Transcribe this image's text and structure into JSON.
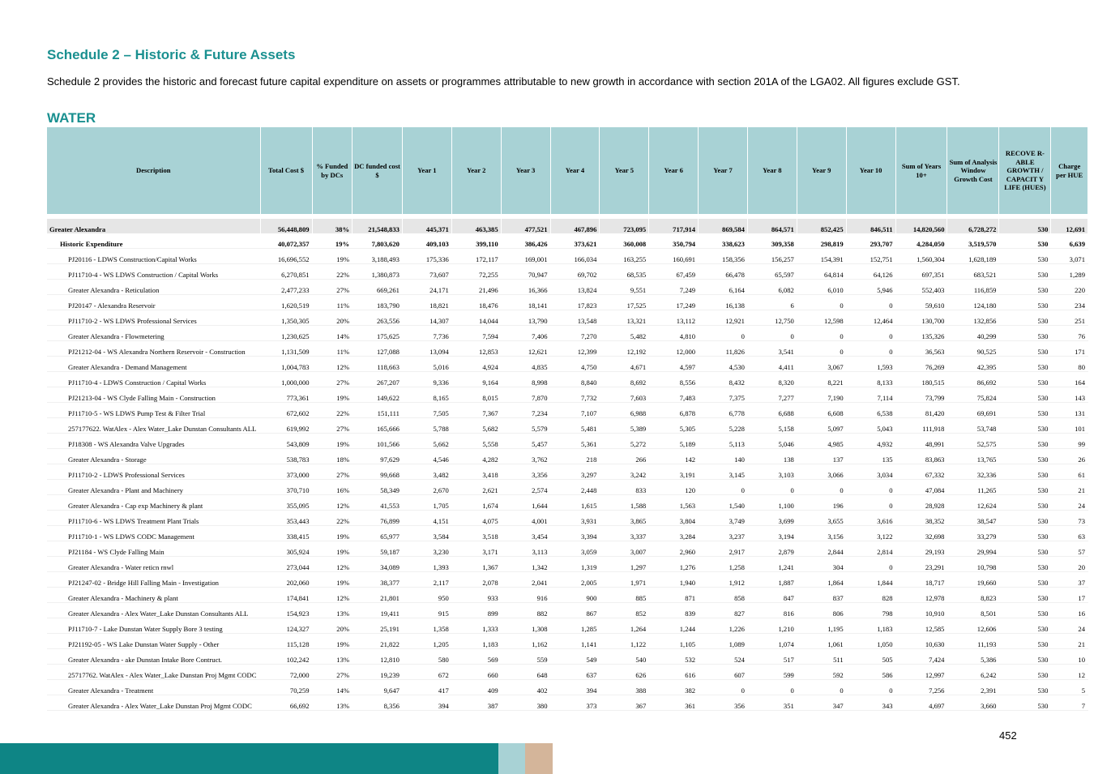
{
  "heading": "Schedule 2 – Historic & Future Assets",
  "intro": "Schedule 2 provides the historic and forecast future capital expenditure on assets or programmes attributable to new growth in accordance with section 201A of the LGA02. All figures exclude GST.",
  "section": "WATER",
  "page_number": "452",
  "columns": [
    "Description",
    "Total Cost $",
    "% Funded by DCs",
    "DC funded cost $",
    "Year 1",
    "Year 2",
    "Year 3",
    "Year 4",
    "Year 5",
    "Year 6",
    "Year 7",
    "Year 8",
    "Year 9",
    "Year 10",
    "Sum of Years 10+",
    "Sum of Analysis Window Growth Cost",
    "RECOVE R-ABLE GROWTH / CAPACIT Y LIFE (HUES)",
    "Charge per HUE"
  ],
  "rows": [
    {
      "level": 1,
      "cells": [
        "Greater Alexandra",
        "56,448,809",
        "38%",
        "21,548,833",
        "445,371",
        "463,385",
        "477,521",
        "467,896",
        "723,095",
        "717,914",
        "869,584",
        "864,571",
        "852,425",
        "846,511",
        "14,820,560",
        "6,728,272",
        "530",
        "12,691"
      ]
    },
    {
      "level": 2,
      "cells": [
        "Historic Expenditure",
        "40,072,357",
        "19%",
        "7,803,620",
        "409,103",
        "399,110",
        "386,426",
        "373,621",
        "360,008",
        "350,794",
        "338,623",
        "309,358",
        "298,819",
        "293,707",
        "4,284,050",
        "3,519,570",
        "530",
        "6,639"
      ]
    },
    {
      "level": 3,
      "cells": [
        "PJ20116 - LDWS Construction/Capital Works",
        "16,696,552",
        "19%",
        "3,188,493",
        "175,336",
        "172,117",
        "169,001",
        "166,034",
        "163,255",
        "160,691",
        "158,356",
        "156,257",
        "154,391",
        "152,751",
        "1,560,304",
        "1,628,189",
        "530",
        "3,071"
      ]
    },
    {
      "level": 3,
      "cells": [
        "PJ11710-4 - WS LDWS Construction / Capital Works",
        "6,270,851",
        "22%",
        "1,380,873",
        "73,607",
        "72,255",
        "70,947",
        "69,702",
        "68,535",
        "67,459",
        "66,478",
        "65,597",
        "64,814",
        "64,126",
        "697,351",
        "683,521",
        "530",
        "1,289"
      ]
    },
    {
      "level": 3,
      "cells": [
        "Greater Alexandra - Reticulation",
        "2,477,233",
        "27%",
        "669,261",
        "24,171",
        "21,496",
        "16,366",
        "13,824",
        "9,551",
        "7,249",
        "6,164",
        "6,082",
        "6,010",
        "5,946",
        "552,403",
        "116,859",
        "530",
        "220"
      ]
    },
    {
      "level": 3,
      "cells": [
        "PJ20147 - Alexandra Reservoir",
        "1,620,519",
        "11%",
        "183,790",
        "18,821",
        "18,476",
        "18,141",
        "17,823",
        "17,525",
        "17,249",
        "16,138",
        "6",
        "0",
        "0",
        "59,610",
        "124,180",
        "530",
        "234"
      ]
    },
    {
      "level": 3,
      "cells": [
        "PJ11710-2 - WS LDWS Professional Services",
        "1,350,305",
        "20%",
        "263,556",
        "14,307",
        "14,044",
        "13,790",
        "13,548",
        "13,321",
        "13,112",
        "12,921",
        "12,750",
        "12,598",
        "12,464",
        "130,700",
        "132,856",
        "530",
        "251"
      ]
    },
    {
      "level": 3,
      "cells": [
        "Greater Alexandra - Flowmetering",
        "1,230,625",
        "14%",
        "175,625",
        "7,736",
        "7,594",
        "7,406",
        "7,270",
        "5,482",
        "4,810",
        "0",
        "0",
        "0",
        "0",
        "135,326",
        "40,299",
        "530",
        "76"
      ]
    },
    {
      "level": 3,
      "cells": [
        "PJ21212-04 - WS Alexandra Northern Reservoir - Construction",
        "1,131,509",
        "11%",
        "127,088",
        "13,094",
        "12,853",
        "12,621",
        "12,399",
        "12,192",
        "12,000",
        "11,826",
        "3,541",
        "0",
        "0",
        "36,563",
        "90,525",
        "530",
        "171"
      ]
    },
    {
      "level": 3,
      "cells": [
        "Greater Alexandra - Demand Management",
        "1,004,783",
        "12%",
        "118,663",
        "5,016",
        "4,924",
        "4,835",
        "4,750",
        "4,671",
        "4,597",
        "4,530",
        "4,411",
        "3,067",
        "1,593",
        "76,269",
        "42,395",
        "530",
        "80"
      ]
    },
    {
      "level": 3,
      "cells": [
        "PJ11710-4 - LDWS Construction / Capital Works",
        "1,000,000",
        "27%",
        "267,207",
        "9,336",
        "9,164",
        "8,998",
        "8,840",
        "8,692",
        "8,556",
        "8,432",
        "8,320",
        "8,221",
        "8,133",
        "180,515",
        "86,692",
        "530",
        "164"
      ]
    },
    {
      "level": 3,
      "cells": [
        "PJ21213-04 - WS Clyde Falling Main - Construction",
        "773,361",
        "19%",
        "149,622",
        "8,165",
        "8,015",
        "7,870",
        "7,732",
        "7,603",
        "7,483",
        "7,375",
        "7,277",
        "7,190",
        "7,114",
        "73,799",
        "75,824",
        "530",
        "143"
      ]
    },
    {
      "level": 3,
      "cells": [
        "PJ11710-5 - WS LDWS Pump Test & Filter Trial",
        "672,602",
        "22%",
        "151,111",
        "7,505",
        "7,367",
        "7,234",
        "7,107",
        "6,988",
        "6,878",
        "6,778",
        "6,688",
        "6,608",
        "6,538",
        "81,420",
        "69,691",
        "530",
        "131"
      ]
    },
    {
      "level": 3,
      "cells": [
        "257177622. WatAlex - Alex Water_Lake Dunstan Consultants ALL",
        "619,992",
        "27%",
        "165,666",
        "5,788",
        "5,682",
        "5,579",
        "5,481",
        "5,389",
        "5,305",
        "5,228",
        "5,158",
        "5,097",
        "5,043",
        "111,918",
        "53,748",
        "530",
        "101"
      ]
    },
    {
      "level": 3,
      "cells": [
        "PJ18308 - WS Alexandra Valve Upgrades",
        "543,809",
        "19%",
        "101,566",
        "5,662",
        "5,558",
        "5,457",
        "5,361",
        "5,272",
        "5,189",
        "5,113",
        "5,046",
        "4,985",
        "4,932",
        "48,991",
        "52,575",
        "530",
        "99"
      ]
    },
    {
      "level": 3,
      "cells": [
        "Greater Alexandra - Storage",
        "538,783",
        "18%",
        "97,629",
        "4,546",
        "4,282",
        "3,762",
        "218",
        "266",
        "142",
        "140",
        "138",
        "137",
        "135",
        "83,863",
        "13,765",
        "530",
        "26"
      ]
    },
    {
      "level": 3,
      "cells": [
        "PJ11710-2 - LDWS Professional Services",
        "373,000",
        "27%",
        "99,668",
        "3,482",
        "3,418",
        "3,356",
        "3,297",
        "3,242",
        "3,191",
        "3,145",
        "3,103",
        "3,066",
        "3,034",
        "67,332",
        "32,336",
        "530",
        "61"
      ]
    },
    {
      "level": 3,
      "cells": [
        "Greater Alexandra - Plant and Machinery",
        "370,710",
        "16%",
        "58,349",
        "2,670",
        "2,621",
        "2,574",
        "2,448",
        "833",
        "120",
        "0",
        "0",
        "0",
        "0",
        "47,084",
        "11,265",
        "530",
        "21"
      ]
    },
    {
      "level": 3,
      "cells": [
        "Greater Alexandra - Cap exp Machinery & plant",
        "355,095",
        "12%",
        "41,553",
        "1,705",
        "1,674",
        "1,644",
        "1,615",
        "1,588",
        "1,563",
        "1,540",
        "1,100",
        "196",
        "0",
        "28,928",
        "12,624",
        "530",
        "24"
      ]
    },
    {
      "level": 3,
      "cells": [
        "PJ11710-6 - WS LDWS Treatment  Plant Trials",
        "353,443",
        "22%",
        "76,899",
        "4,151",
        "4,075",
        "4,001",
        "3,931",
        "3,865",
        "3,804",
        "3,749",
        "3,699",
        "3,655",
        "3,616",
        "38,352",
        "38,547",
        "530",
        "73"
      ]
    },
    {
      "level": 3,
      "cells": [
        "PJ11710-1 - WS LDWS CODC Management",
        "338,415",
        "19%",
        "65,977",
        "3,584",
        "3,518",
        "3,454",
        "3,394",
        "3,337",
        "3,284",
        "3,237",
        "3,194",
        "3,156",
        "3,122",
        "32,698",
        "33,279",
        "530",
        "63"
      ]
    },
    {
      "level": 3,
      "cells": [
        "PJ21184 - WS Clyde Falling Main",
        "305,924",
        "19%",
        "59,187",
        "3,230",
        "3,171",
        "3,113",
        "3,059",
        "3,007",
        "2,960",
        "2,917",
        "2,879",
        "2,844",
        "2,814",
        "29,193",
        "29,994",
        "530",
        "57"
      ]
    },
    {
      "level": 3,
      "cells": [
        "Greater Alexandra - Water reticn rnwl",
        "273,044",
        "12%",
        "34,089",
        "1,393",
        "1,367",
        "1,342",
        "1,319",
        "1,297",
        "1,276",
        "1,258",
        "1,241",
        "304",
        "0",
        "23,291",
        "10,798",
        "530",
        "20"
      ]
    },
    {
      "level": 3,
      "cells": [
        "PJ21247-02 - Bridge Hill Falling Main - Investigation",
        "202,060",
        "19%",
        "38,377",
        "2,117",
        "2,078",
        "2,041",
        "2,005",
        "1,971",
        "1,940",
        "1,912",
        "1,887",
        "1,864",
        "1,844",
        "18,717",
        "19,660",
        "530",
        "37"
      ]
    },
    {
      "level": 3,
      "cells": [
        "Greater Alexandra - Machinery & plant",
        "174,841",
        "12%",
        "21,801",
        "950",
        "933",
        "916",
        "900",
        "885",
        "871",
        "858",
        "847",
        "837",
        "828",
        "12,978",
        "8,823",
        "530",
        "17"
      ]
    },
    {
      "level": 3,
      "cells": [
        "Greater Alexandra - Alex Water_Lake Dunstan Consultants ALL",
        "154,923",
        "13%",
        "19,411",
        "915",
        "899",
        "882",
        "867",
        "852",
        "839",
        "827",
        "816",
        "806",
        "798",
        "10,910",
        "8,501",
        "530",
        "16"
      ]
    },
    {
      "level": 3,
      "cells": [
        "PJ11710-7 - Lake Dunstan Water Supply Bore 3 testing",
        "124,327",
        "20%",
        "25,191",
        "1,358",
        "1,333",
        "1,308",
        "1,285",
        "1,264",
        "1,244",
        "1,226",
        "1,210",
        "1,195",
        "1,183",
        "12,585",
        "12,606",
        "530",
        "24"
      ]
    },
    {
      "level": 3,
      "cells": [
        "PJ21192-05 - WS Lake Dunstan Water Supply - Other",
        "115,128",
        "19%",
        "21,822",
        "1,205",
        "1,183",
        "1,162",
        "1,141",
        "1,122",
        "1,105",
        "1,089",
        "1,074",
        "1,061",
        "1,050",
        "10,630",
        "11,193",
        "530",
        "21"
      ]
    },
    {
      "level": 3,
      "cells": [
        "Greater Alexandra - ake Dunstan Intake Bore Contruct.",
        "102,242",
        "13%",
        "12,810",
        "580",
        "569",
        "559",
        "549",
        "540",
        "532",
        "524",
        "517",
        "511",
        "505",
        "7,424",
        "5,386",
        "530",
        "10"
      ]
    },
    {
      "level": 3,
      "cells": [
        "25717762. WatAlex - Alex Water_Lake Dunstan Proj Mgmt CODC",
        "72,000",
        "27%",
        "19,239",
        "672",
        "660",
        "648",
        "637",
        "626",
        "616",
        "607",
        "599",
        "592",
        "586",
        "12,997",
        "6,242",
        "530",
        "12"
      ]
    },
    {
      "level": 3,
      "cells": [
        "Greater Alexandra - Treatment",
        "70,259",
        "14%",
        "9,647",
        "417",
        "409",
        "402",
        "394",
        "388",
        "382",
        "0",
        "0",
        "0",
        "0",
        "7,256",
        "2,391",
        "530",
        "5"
      ]
    },
    {
      "level": 3,
      "cells": [
        "Greater Alexandra - Alex Water_Lake Dunstan Proj Mgmt CODC",
        "66,692",
        "13%",
        "8,356",
        "394",
        "387",
        "380",
        "373",
        "367",
        "361",
        "356",
        "351",
        "347",
        "343",
        "4,697",
        "3,660",
        "530",
        "7"
      ]
    }
  ],
  "colors": {
    "accent": "#1a9090",
    "header_bg": "#a8d2d5",
    "footer_teal": "#0e8585",
    "footer_light": "#a8d2d5",
    "footer_tan": "#d4b59a"
  }
}
